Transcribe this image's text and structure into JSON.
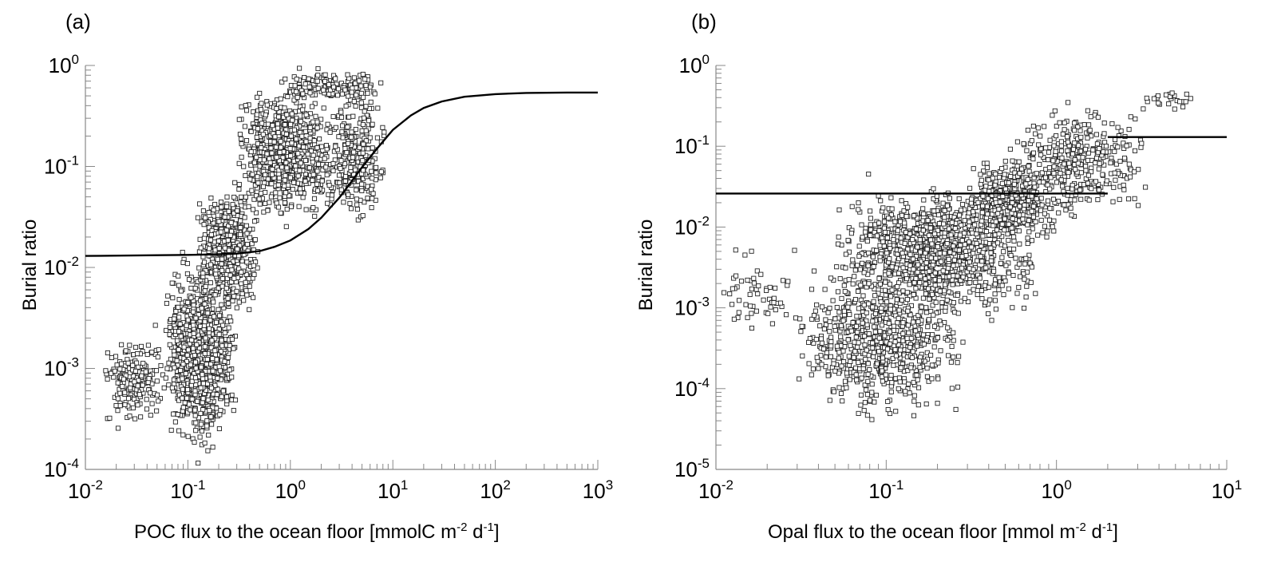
{
  "chart_data": [
    {
      "panel": "(a)",
      "type": "scatter",
      "xscale": "log",
      "yscale": "log",
      "xlim": [
        0.01,
        1000
      ],
      "ylim": [
        0.0001,
        1
      ],
      "xlabel_main": "POC flux to the ocean floor  [mmolC m",
      "xlabel_exp1": "-2",
      "xlabel_mid": " d",
      "xlabel_exp2": "-1",
      "xlabel_end": "]",
      "ylabel": "Burial ratio",
      "xticks": [
        {
          "base": "10",
          "exp": "-2",
          "value": 0.01
        },
        {
          "base": "10",
          "exp": "-1",
          "value": 0.1
        },
        {
          "base": "10",
          "exp": "0",
          "value": 1
        },
        {
          "base": "10",
          "exp": "1",
          "value": 10
        },
        {
          "base": "10",
          "exp": "2",
          "value": 100
        },
        {
          "base": "10",
          "exp": "3",
          "value": 1000
        }
      ],
      "yticks": [
        {
          "base": "10",
          "exp": "-4",
          "value": 0.0001
        },
        {
          "base": "10",
          "exp": "-3",
          "value": 0.001
        },
        {
          "base": "10",
          "exp": "-2",
          "value": 0.01
        },
        {
          "base": "10",
          "exp": "-1",
          "value": 0.1
        },
        {
          "base": "10",
          "exp": "0",
          "value": 1
        }
      ],
      "fit_line": {
        "type": "sigmoid",
        "x": [
          0.01,
          0.05,
          0.1,
          0.2,
          0.3,
          0.5,
          0.7,
          1,
          1.5,
          2,
          3,
          4,
          5,
          7,
          10,
          15,
          20,
          30,
          50,
          100,
          200,
          500,
          1000
        ],
        "y": [
          0.013,
          0.0132,
          0.0133,
          0.0135,
          0.0137,
          0.0145,
          0.016,
          0.0185,
          0.024,
          0.031,
          0.049,
          0.072,
          0.098,
          0.15,
          0.23,
          0.32,
          0.38,
          0.44,
          0.49,
          0.52,
          0.535,
          0.54,
          0.54
        ]
      },
      "scatter_clusters": [
        {
          "x_range": [
            0.015,
            0.06
          ],
          "y_range": [
            0.0002,
            0.003
          ],
          "n": 180
        },
        {
          "x_range": [
            0.06,
            0.3
          ],
          "y_range": [
            0.0001,
            0.02
          ],
          "n": 900
        },
        {
          "x_range": [
            0.12,
            0.5
          ],
          "y_range": [
            0.003,
            0.08
          ],
          "n": 500
        },
        {
          "x_range": [
            0.3,
            2.5
          ],
          "y_range": [
            0.02,
            0.9
          ],
          "n": 700
        },
        {
          "x_range": [
            2,
            9
          ],
          "y_range": [
            0.02,
            0.9
          ],
          "n": 300
        },
        {
          "x_range": [
            0.8,
            8
          ],
          "y_range": [
            0.4,
            1.0
          ],
          "n": 120
        }
      ]
    },
    {
      "panel": "(b)",
      "type": "scatter",
      "xscale": "log",
      "yscale": "log",
      "xlim": [
        0.01,
        10
      ],
      "ylim": [
        1e-05,
        1
      ],
      "xlabel_main": "Opal flux to the ocean floor  [mmol m",
      "xlabel_exp1": "-2",
      "xlabel_mid": " d",
      "xlabel_exp2": "-1",
      "xlabel_end": "]",
      "ylabel": "Burial ratio",
      "xticks": [
        {
          "base": "10",
          "exp": "-2",
          "value": 0.01
        },
        {
          "base": "10",
          "exp": "-1",
          "value": 0.1
        },
        {
          "base": "10",
          "exp": "0",
          "value": 1
        },
        {
          "base": "10",
          "exp": "1",
          "value": 10
        }
      ],
      "yticks": [
        {
          "base": "10",
          "exp": "-5",
          "value": 1e-05
        },
        {
          "base": "10",
          "exp": "-4",
          "value": 0.0001
        },
        {
          "base": "10",
          "exp": "-3",
          "value": 0.001
        },
        {
          "base": "10",
          "exp": "-2",
          "value": 0.01
        },
        {
          "base": "10",
          "exp": "-1",
          "value": 0.1
        },
        {
          "base": "10",
          "exp": "0",
          "value": 1
        }
      ],
      "fit_line_segments": [
        {
          "x": [
            0.01,
            2.0
          ],
          "y": [
            0.026,
            0.026
          ]
        },
        {
          "x": [
            2.0,
            10
          ],
          "y": [
            0.13,
            0.13
          ]
        }
      ],
      "scatter_clusters": [
        {
          "x_range": [
            0.01,
            0.04
          ],
          "y_range": [
            0.0004,
            0.007
          ],
          "n": 60
        },
        {
          "x_range": [
            0.03,
            0.3
          ],
          "y_range": [
            3e-05,
            0.005
          ],
          "n": 700
        },
        {
          "x_range": [
            0.05,
            0.8
          ],
          "y_range": [
            0.0005,
            0.05
          ],
          "n": 1100
        },
        {
          "x_range": [
            0.3,
            1.0
          ],
          "y_range": [
            0.005,
            0.1
          ],
          "n": 400
        },
        {
          "x_range": [
            0.5,
            3.5
          ],
          "y_range": [
            0.01,
            0.45
          ],
          "n": 350
        },
        {
          "x_range": [
            3.0,
            6.5
          ],
          "y_range": [
            0.25,
            0.6
          ],
          "n": 25
        }
      ]
    }
  ]
}
